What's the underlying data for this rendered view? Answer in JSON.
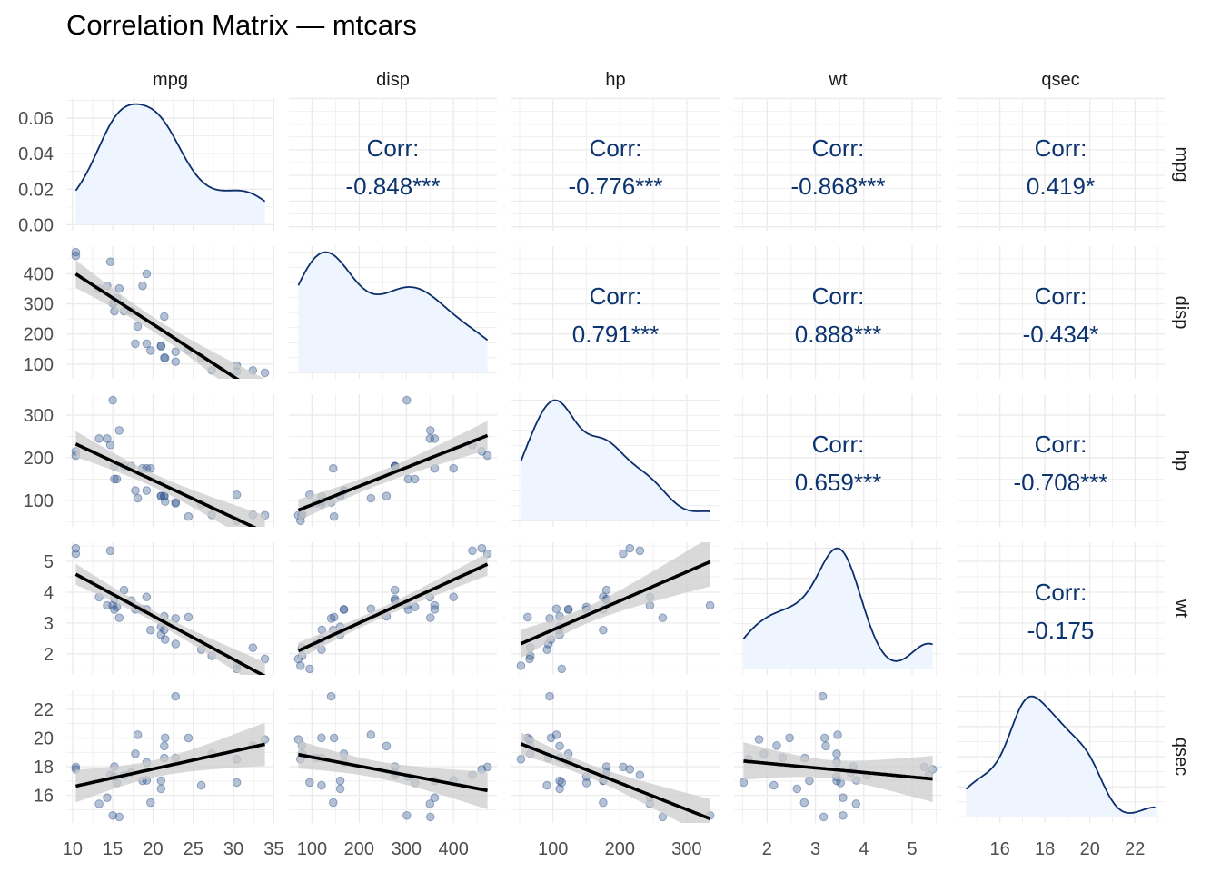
{
  "chart_data": {
    "type": "scatter-matrix",
    "title": "Correlation Matrix — mtcars",
    "variables": [
      "mpg",
      "disp",
      "hp",
      "wt",
      "qsec"
    ],
    "data": {
      "mpg": [
        21,
        21,
        22.8,
        21.4,
        18.7,
        18.1,
        14.3,
        24.4,
        22.8,
        19.2,
        17.8,
        16.4,
        17.3,
        15.2,
        10.4,
        10.4,
        14.7,
        32.4,
        30.4,
        33.9,
        21.5,
        15.5,
        15.2,
        13.3,
        19.2,
        27.3,
        26,
        30.4,
        15.8,
        19.7,
        15,
        21.4
      ],
      "disp": [
        160,
        160,
        108,
        258,
        360,
        225,
        360,
        146.7,
        140.8,
        167.6,
        167.6,
        275.8,
        275.8,
        275.8,
        472,
        460,
        440,
        78.7,
        75.7,
        71.1,
        120.1,
        318,
        304,
        350,
        400,
        79,
        120.3,
        95.1,
        351,
        145,
        301,
        121
      ],
      "hp": [
        110,
        110,
        93,
        110,
        175,
        105,
        245,
        62,
        95,
        123,
        123,
        180,
        180,
        180,
        205,
        215,
        230,
        66,
        52,
        65,
        97,
        150,
        150,
        245,
        175,
        66,
        91,
        113,
        264,
        175,
        335,
        109
      ],
      "wt": [
        2.62,
        2.875,
        2.32,
        3.215,
        3.44,
        3.46,
        3.57,
        3.19,
        3.15,
        3.44,
        3.44,
        4.07,
        3.73,
        3.78,
        5.25,
        5.424,
        5.345,
        2.2,
        1.615,
        1.835,
        2.465,
        3.52,
        3.435,
        3.84,
        3.845,
        1.935,
        2.14,
        1.513,
        3.17,
        2.77,
        3.57,
        2.78
      ],
      "qsec": [
        16.46,
        17.02,
        18.61,
        19.44,
        17.02,
        20.22,
        15.84,
        20,
        22.9,
        18.3,
        18.9,
        17.4,
        17.6,
        18,
        17.98,
        17.82,
        17.42,
        19.47,
        18.52,
        19.9,
        20.01,
        16.87,
        17.3,
        15.41,
        17.05,
        18.9,
        16.7,
        16.9,
        14.5,
        15.5,
        14.6,
        18.6
      ]
    },
    "breaks": {
      "mpg": [
        10,
        15,
        20,
        25,
        30,
        35
      ],
      "disp": [
        100,
        200,
        300,
        400
      ],
      "hp": [
        100,
        200,
        300
      ],
      "wt": [
        2,
        3,
        4,
        5
      ],
      "qsec": [
        16,
        18,
        20,
        22
      ]
    },
    "density_breaks": [
      0,
      0.02,
      0.04,
      0.06
    ],
    "density_tick_labels": [
      "0.00",
      "0.02",
      "0.04",
      "0.06"
    ],
    "corr_label": "Corr:",
    "correlations": {
      "mpg-disp": "-0.848***",
      "mpg-hp": "-0.776***",
      "mpg-wt": "-0.868***",
      "mpg-qsec": "0.419*",
      "disp-hp": "0.791***",
      "disp-wt": "0.888***",
      "disp-qsec": "-0.434*",
      "hp-wt": "0.659***",
      "hp-qsec": "-0.708***",
      "wt-qsec": "-0.175"
    },
    "lower": "points + linear fit with 95% CI",
    "diagonal": "density",
    "grid": true,
    "colors": {
      "density_fill": "#eef5fe",
      "density_line": "#0b2e6b",
      "point": "#2a4f8a",
      "fit_line": "#000000",
      "ci_band": "#cccccc",
      "corr_text": "#0b3470",
      "grid": "#ebebeb"
    }
  }
}
